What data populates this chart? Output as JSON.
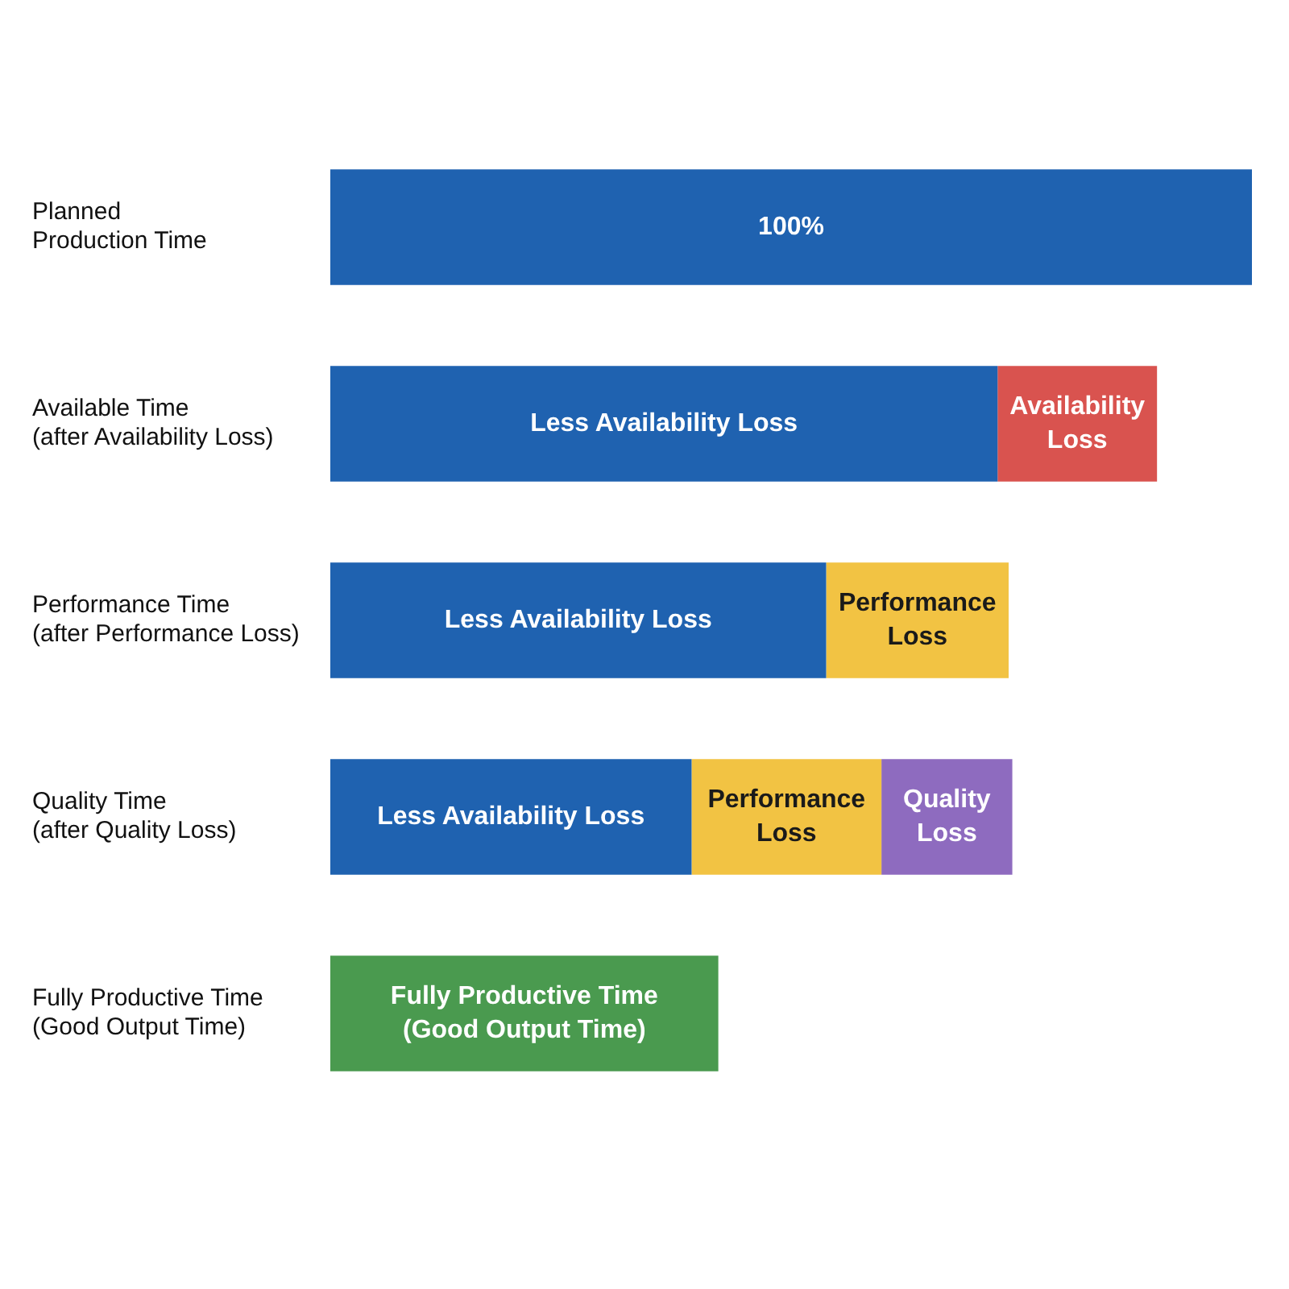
{
  "chart_data": {
    "type": "bar",
    "orientation": "horizontal",
    "stacked": true,
    "legend": false,
    "categories": [
      "Planned\nProduction Time",
      "Available Time\n(after Availability Loss)",
      "Performance Time\n(after Performance Loss)",
      "Quality Time\n(after Quality Loss)",
      "Fully Productive Time\n(Good Output Time)"
    ],
    "series": [
      {
        "color": "#1f62b0",
        "values": [
          100,
          72.4,
          53.8,
          39.2,
          null
        ],
        "value_labels": [
          "100%",
          "Less Availability Loss",
          "Less Availability Loss",
          "Less Availability Loss",
          null
        ]
      },
      {
        "color": "#d9534f",
        "values": [
          null,
          17.3,
          null,
          null,
          null
        ],
        "value_labels": [
          null,
          "Availability\nLoss",
          null,
          null,
          null
        ]
      },
      {
        "color": "#f2c343",
        "values": [
          null,
          null,
          19.8,
          20.6,
          null
        ],
        "value_labels": [
          null,
          null,
          "Performance\nLoss",
          "Performance\nLoss",
          null
        ]
      },
      {
        "color": "#8e6bbf",
        "values": [
          null,
          null,
          null,
          14.2,
          null
        ],
        "value_labels": [
          null,
          null,
          null,
          "Quality\nLoss",
          null
        ]
      },
      {
        "color": "#4a9a4f",
        "values": [
          null,
          null,
          null,
          null,
          42.1
        ],
        "value_labels": [
          null,
          null,
          null,
          null,
          "Fully Productive Time\n(Good Output Time)"
        ]
      }
    ]
  }
}
